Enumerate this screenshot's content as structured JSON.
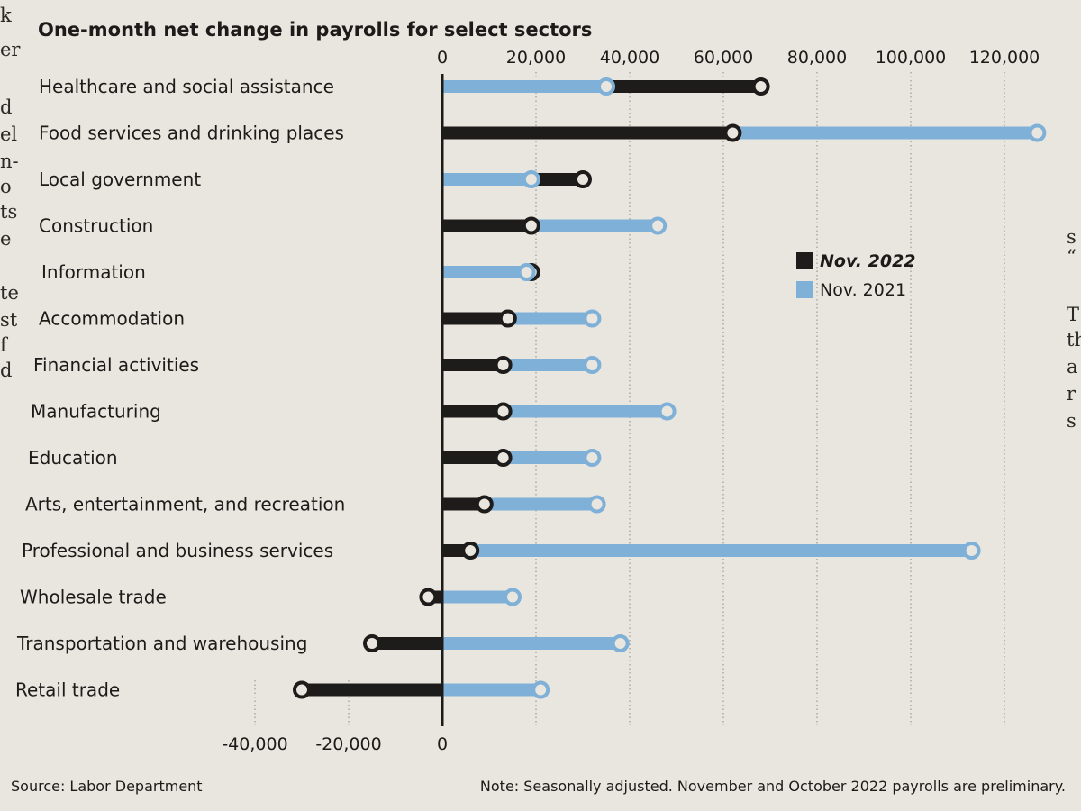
{
  "chart_data": {
    "type": "bar",
    "orientation": "horizontal",
    "title": "One-month net change in payrolls for select sectors",
    "categories": [
      "Healthcare and social assistance",
      "Food services and drinking places",
      "Local government",
      "Construction",
      "Information",
      "Accommodation",
      "Financial activities",
      "Manufacturing",
      "Education",
      "Arts, entertainment, and recreation",
      "Professional and business services",
      "Wholesale trade",
      "Transportation and warehousing",
      "Retail trade"
    ],
    "series": [
      {
        "name": "Nov. 2022",
        "color": "#1e1c1a",
        "values": [
          68000,
          62000,
          30000,
          19000,
          19000,
          14000,
          13000,
          13000,
          13000,
          9000,
          6000,
          -3000,
          -15000,
          -30000
        ]
      },
      {
        "name": "Nov. 2021",
        "color": "#7fb0d8",
        "values": [
          35000,
          127000,
          19000,
          46000,
          18000,
          32000,
          32000,
          48000,
          32000,
          33000,
          113000,
          15000,
          38000,
          21000
        ]
      }
    ],
    "top_ticks": [
      "0",
      "20,000",
      "40,000",
      "60,000",
      "80,000",
      "100,000",
      "120,000"
    ],
    "top_tick_values": [
      0,
      20000,
      40000,
      60000,
      80000,
      100000,
      120000
    ],
    "bottom_ticks": [
      "-40,000",
      "-20,000",
      "0"
    ],
    "bottom_tick_values": [
      -40000,
      -20000,
      0
    ],
    "xlim": [
      -40000,
      130000
    ],
    "grid": true,
    "legend_position": "right"
  },
  "legend": {
    "nov_2022": "Nov. 2022",
    "nov_2021": "Nov. 2021"
  },
  "footer": {
    "source": "Source: Labor Department",
    "note": "Note: Seasonally adjusted. November and October 2022 payrolls are preliminary."
  },
  "margin_text": {
    "left": [
      "k",
      "er",
      "d",
      "el",
      "n-",
      "o",
      "ts",
      "e",
      "te",
      "st",
      "f",
      "d"
    ],
    "right": [
      "s",
      "“",
      "T",
      "th",
      "a",
      "r",
      "s"
    ]
  },
  "colors": {
    "nov_2022": "#1e1c1a",
    "nov_2021": "#7fb0d8",
    "background": "#e9e6df"
  }
}
